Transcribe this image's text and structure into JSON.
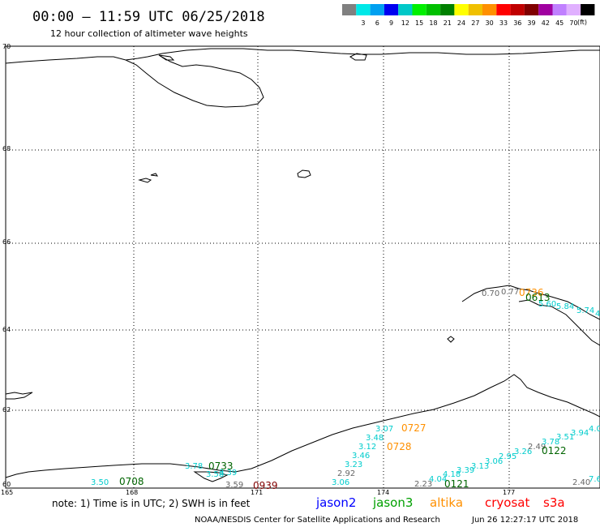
{
  "header": {
    "title": "00:00 – 11:59 UTC 06/25/2018",
    "subtitle": "12 hour collection of altimeter wave heights"
  },
  "legend": {
    "unit": "(ft)",
    "swatches": [
      {
        "color": "#808080",
        "label": ""
      },
      {
        "color": "#00e8e8",
        "label": "3"
      },
      {
        "color": "#00a0f0",
        "label": "6"
      },
      {
        "color": "#0000f0",
        "label": "9"
      },
      {
        "color": "#00c8c8",
        "label": "12"
      },
      {
        "color": "#00f000",
        "label": "15"
      },
      {
        "color": "#00c000",
        "label": "18"
      },
      {
        "color": "#008000",
        "label": "21"
      },
      {
        "color": "#ffff00",
        "label": "24"
      },
      {
        "color": "#f0c000",
        "label": "27"
      },
      {
        "color": "#ff9000",
        "label": "30"
      },
      {
        "color": "#ff0000",
        "label": "33"
      },
      {
        "color": "#c00000",
        "label": "36"
      },
      {
        "color": "#800000",
        "label": "39"
      },
      {
        "color": "#a000a0",
        "label": "42"
      },
      {
        "color": "#c080ff",
        "label": "45"
      },
      {
        "color": "#e0b0ff",
        "label": "70"
      },
      {
        "color": "#000000",
        "label": ""
      }
    ]
  },
  "map": {
    "lat_ticks": [
      "70",
      "68",
      "66",
      "64",
      "62",
      "60"
    ],
    "lon_ticks": [
      "165",
      "168",
      "171",
      "174",
      "177"
    ],
    "measurements": [
      {
        "text": "3.50",
        "color": "#00cccc"
      },
      {
        "text": "0708",
        "color": "#006400"
      },
      {
        "text": "3.78",
        "color": "#00cccc"
      },
      {
        "text": "0733",
        "color": "#006400"
      },
      {
        "text": "3.58",
        "color": "#00cccc"
      },
      {
        "text": "3.39",
        "color": "#00cccc"
      },
      {
        "text": "3.59",
        "color": "#666666"
      },
      {
        "text": "0939",
        "color": "#800000"
      },
      {
        "text": "3.06",
        "color": "#00cccc"
      },
      {
        "text": "2.92",
        "color": "#666666"
      },
      {
        "text": "3.23",
        "color": "#00cccc"
      },
      {
        "text": "3.46",
        "color": "#00cccc"
      },
      {
        "text": "3.12",
        "color": "#00cccc"
      },
      {
        "text": "0728",
        "color": "#ff9000"
      },
      {
        "text": "3.48",
        "color": "#00cccc"
      },
      {
        "text": "3.07",
        "color": "#00cccc"
      },
      {
        "text": "0727",
        "color": "#ff9000"
      },
      {
        "text": "2.23",
        "color": "#666666"
      },
      {
        "text": "4.04",
        "color": "#00cccc"
      },
      {
        "text": "4.18",
        "color": "#00cccc"
      },
      {
        "text": "0121",
        "color": "#006400"
      },
      {
        "text": "3.39",
        "color": "#00cccc"
      },
      {
        "text": "3.13",
        "color": "#00cccc"
      },
      {
        "text": "3.06",
        "color": "#00cccc"
      },
      {
        "text": "2.95",
        "color": "#00cccc"
      },
      {
        "text": "3.26",
        "color": "#00cccc"
      },
      {
        "text": "2.49",
        "color": "#666666"
      },
      {
        "text": "3.78",
        "color": "#00cccc"
      },
      {
        "text": "0122",
        "color": "#006400"
      },
      {
        "text": "3.51",
        "color": "#00cccc"
      },
      {
        "text": "3.94",
        "color": "#00cccc"
      },
      {
        "text": "4.0",
        "color": "#00cccc"
      },
      {
        "text": "2.40",
        "color": "#666666"
      },
      {
        "text": "7.6",
        "color": "#00cccc"
      },
      {
        "text": "0.70",
        "color": "#666666"
      },
      {
        "text": "0.77",
        "color": "#666666"
      },
      {
        "text": "0736",
        "color": "#ff9000"
      },
      {
        "text": "0613",
        "color": "#006400"
      },
      {
        "text": "5.60",
        "color": "#00cccc"
      },
      {
        "text": "5.84",
        "color": "#00cccc"
      },
      {
        "text": "5.74",
        "color": "#00cccc"
      },
      {
        "text": "4",
        "color": "#00cccc"
      }
    ]
  },
  "footer": {
    "note": "note: 1) Time is in UTC; 2) SWH is in feet",
    "satellites": [
      {
        "name": "jason2",
        "color": "#0000ff"
      },
      {
        "name": "jason3",
        "color": "#00a000"
      },
      {
        "name": "altika",
        "color": "#ff9000"
      },
      {
        "name": "cryosat",
        "color": "#ff0000"
      },
      {
        "name": "s3a",
        "color": "#ff0000"
      }
    ],
    "credit": "NOAA/NESDIS Center for Satellite Applications and Research",
    "timestamp": "Jun 26 12:27:17 UTC 2018"
  }
}
